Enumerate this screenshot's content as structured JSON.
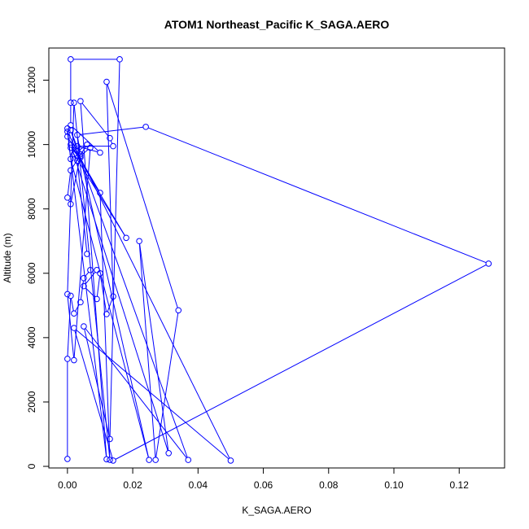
{
  "chart_data": {
    "type": "line",
    "title": "ATOM1 Northeast_Pacific K_SAGA.AERO",
    "xlabel": "K_SAGA.AERO",
    "ylabel": "Altitude (m)",
    "xlim": [
      -0.0057,
      0.1339
    ],
    "ylim": [
      -50,
      13000
    ],
    "x_ticks": [
      "0.00",
      "0.02",
      "0.04",
      "0.06",
      "0.08",
      "0.10",
      "0.12"
    ],
    "x_tick_values": [
      0,
      0.02,
      0.04,
      0.06,
      0.08,
      0.1,
      0.12
    ],
    "y_ticks": [
      "0",
      "2000",
      "4000",
      "6000",
      "8000",
      "10000",
      "12000"
    ],
    "y_tick_values": [
      0,
      2000,
      4000,
      6000,
      8000,
      10000,
      12000
    ],
    "marker": "open-circle",
    "series": [
      {
        "color": "#0000ff",
        "points": [
          [
            0.0,
            230
          ],
          [
            0.0,
            3340
          ],
          [
            0.001,
            5300
          ],
          [
            0.002,
            4750
          ],
          [
            0.004,
            5100
          ],
          [
            0.005,
            5850
          ],
          [
            0.007,
            6100
          ],
          [
            0.009,
            6100
          ],
          [
            0.005,
            5600
          ],
          [
            0.009,
            5200
          ],
          [
            0.01,
            6000
          ],
          [
            0.012,
            4730
          ],
          [
            0.014,
            5280
          ],
          [
            0.012,
            11950
          ],
          [
            0.034,
            4850
          ],
          [
            0.027,
            200
          ],
          [
            0.022,
            7000
          ],
          [
            0.031,
            410
          ],
          [
            0.001,
            10000
          ],
          [
            0.018,
            7100
          ],
          [
            0.002,
            9700
          ],
          [
            0.006,
            10000
          ],
          [
            0.001,
            9200
          ],
          [
            0.0,
            8350
          ],
          [
            0.001,
            8150
          ],
          [
            0.004,
            9700
          ],
          [
            0.003,
            10300
          ],
          [
            0.024,
            10550
          ],
          [
            0.129,
            6300
          ],
          [
            0.014,
            180
          ],
          [
            0.002,
            4300
          ],
          [
            0.05,
            180
          ],
          [
            0.0,
            10400
          ],
          [
            0.012,
            220
          ],
          [
            0.004,
            11350
          ],
          [
            0.013,
            10200
          ],
          [
            0.014,
            9950
          ],
          [
            0.003,
            9950
          ],
          [
            0.01,
            9750
          ],
          [
            0.001,
            10600
          ],
          [
            0.001,
            11300
          ],
          [
            0.001,
            12650
          ],
          [
            0.016,
            12650
          ],
          [
            0.013,
            850
          ],
          [
            0.005,
            4350
          ],
          [
            0.037,
            200
          ],
          [
            0.003,
            9800
          ],
          [
            0.001,
            10450
          ],
          [
            0.004,
            9650
          ],
          [
            0.007,
            9900
          ],
          [
            0.002,
            3300
          ],
          [
            0.0,
            5350
          ],
          [
            0.002,
            11300
          ],
          [
            0.013,
            200
          ],
          [
            0.01,
            8500
          ],
          [
            0.0,
            10250
          ],
          [
            0.0,
            10500
          ],
          [
            0.001,
            9550
          ],
          [
            0.025,
            200
          ],
          [
            0.004,
            9600
          ],
          [
            0.001,
            9900
          ],
          [
            0.003,
            9500
          ],
          [
            0.006,
            6600
          ]
        ]
      }
    ]
  }
}
